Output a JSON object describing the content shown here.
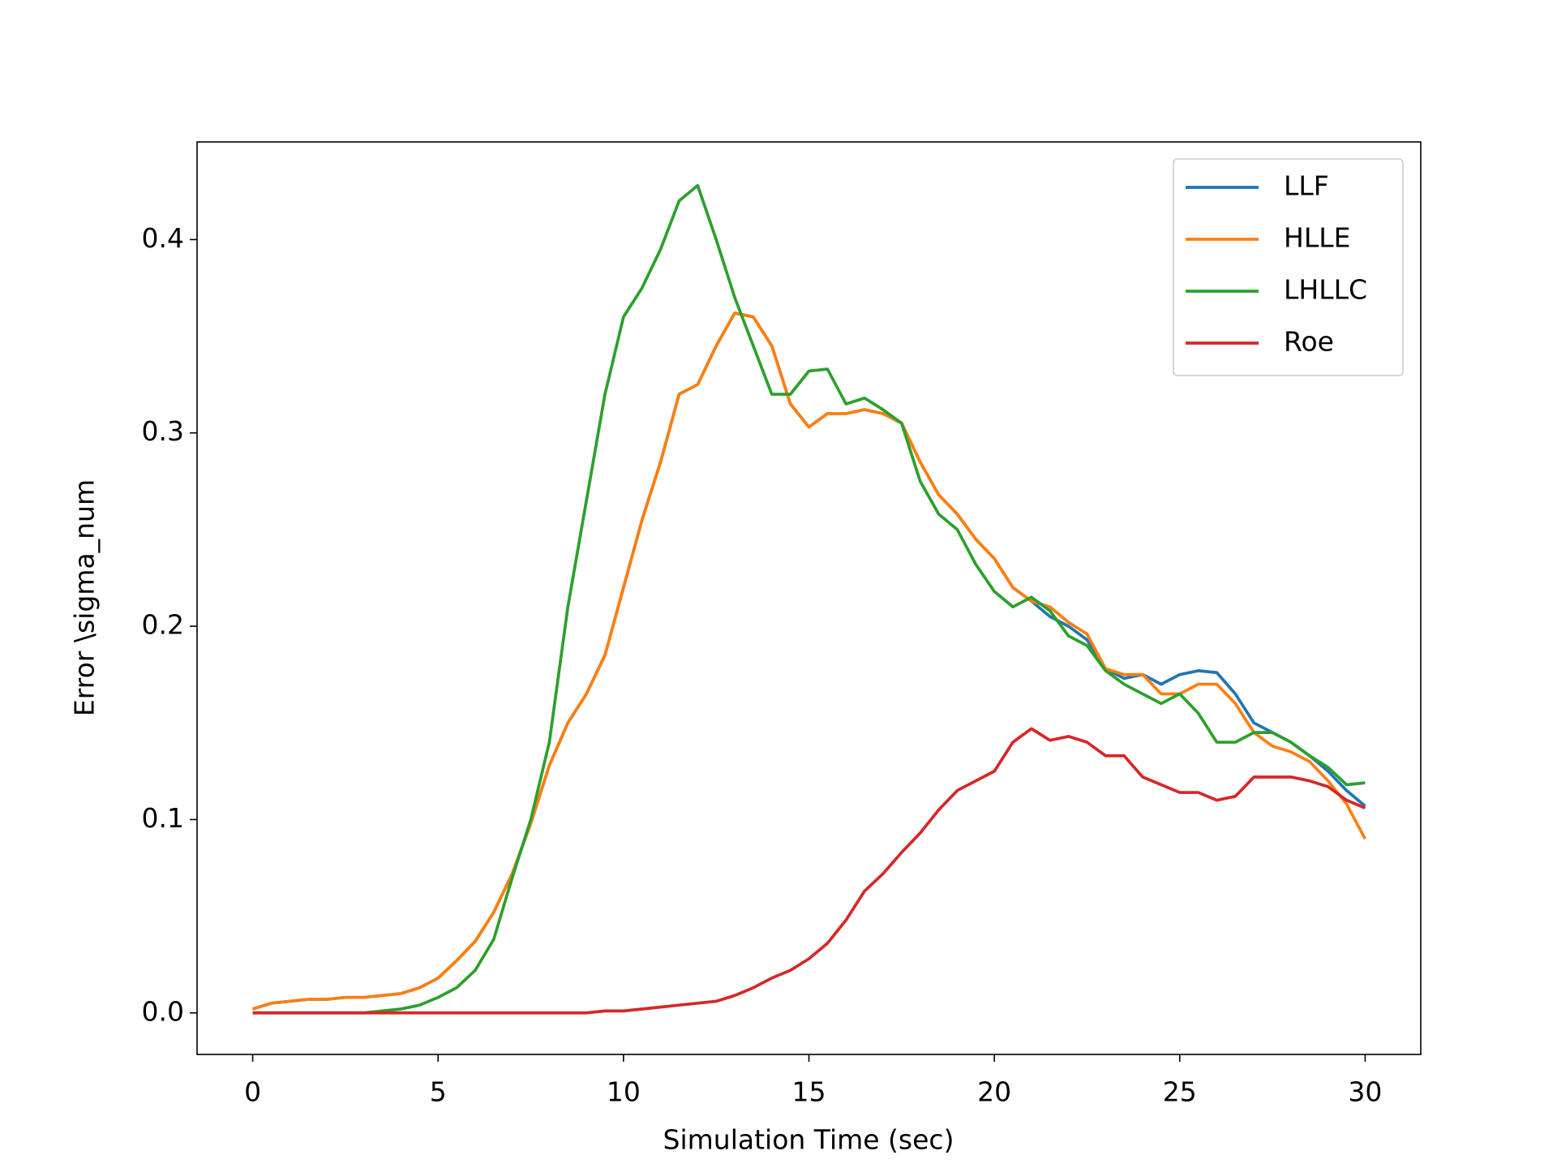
{
  "chart_data": {
    "type": "line",
    "x_label": "Simulation Time (sec)",
    "y_label": "Error \\sigma_num",
    "x": [
      0,
      0.5,
      1,
      1.5,
      2,
      2.5,
      3,
      3.5,
      4,
      4.5,
      5,
      5.5,
      6,
      6.5,
      7,
      7.5,
      8,
      8.5,
      9,
      9.5,
      10,
      10.5,
      11,
      11.5,
      12,
      12.5,
      13,
      13.5,
      14,
      14.5,
      15,
      15.5,
      16,
      16.5,
      17,
      17.5,
      18,
      18.5,
      19,
      19.5,
      20,
      20.5,
      21,
      21.5,
      22,
      22.5,
      23,
      23.5,
      24,
      24.5,
      25,
      25.5,
      26,
      26.5,
      27,
      27.5,
      28,
      28.5,
      29,
      29.5,
      30
    ],
    "series": [
      {
        "name": "LLF",
        "color": "#1f77b4",
        "values": [
          0.002,
          0.005,
          0.006,
          0.007,
          0.007,
          0.008,
          0.008,
          0.009,
          0.01,
          0.013,
          0.018,
          0.027,
          0.037,
          0.052,
          0.072,
          0.098,
          0.128,
          0.15,
          0.165,
          0.185,
          0.22,
          0.255,
          0.285,
          0.32,
          0.325,
          0.345,
          0.362,
          0.36,
          0.345,
          0.315,
          0.303,
          0.31,
          0.31,
          0.312,
          0.31,
          0.305,
          0.285,
          0.268,
          0.258,
          0.245,
          0.235,
          0.22,
          0.213,
          0.205,
          0.2,
          0.193,
          0.178,
          0.173,
          0.175,
          0.17,
          0.175,
          0.177,
          0.176,
          0.165,
          0.15,
          0.145,
          0.14,
          0.133,
          0.125,
          0.115,
          0.107
        ]
      },
      {
        "name": "HLLE",
        "color": "#ff7f0e",
        "values": [
          0.002,
          0.005,
          0.006,
          0.007,
          0.007,
          0.008,
          0.008,
          0.009,
          0.01,
          0.013,
          0.018,
          0.027,
          0.037,
          0.052,
          0.072,
          0.098,
          0.128,
          0.15,
          0.165,
          0.185,
          0.22,
          0.255,
          0.285,
          0.32,
          0.325,
          0.345,
          0.362,
          0.36,
          0.345,
          0.315,
          0.303,
          0.31,
          0.31,
          0.312,
          0.31,
          0.305,
          0.285,
          0.268,
          0.258,
          0.245,
          0.235,
          0.22,
          0.213,
          0.21,
          0.202,
          0.196,
          0.178,
          0.175,
          0.175,
          0.165,
          0.165,
          0.17,
          0.17,
          0.16,
          0.145,
          0.138,
          0.135,
          0.13,
          0.12,
          0.108,
          0.09
        ]
      },
      {
        "name": "LHLLC",
        "color": "#2ca02c",
        "values": [
          0,
          0,
          0,
          0,
          0,
          0,
          0,
          0.001,
          0.002,
          0.004,
          0.008,
          0.013,
          0.022,
          0.038,
          0.07,
          0.1,
          0.14,
          0.21,
          0.265,
          0.32,
          0.36,
          0.375,
          0.395,
          0.42,
          0.428,
          0.4,
          0.37,
          0.345,
          0.32,
          0.32,
          0.332,
          0.333,
          0.315,
          0.318,
          0.312,
          0.305,
          0.275,
          0.258,
          0.25,
          0.232,
          0.218,
          0.21,
          0.215,
          0.208,
          0.195,
          0.19,
          0.177,
          0.17,
          0.165,
          0.16,
          0.165,
          0.155,
          0.14,
          0.14,
          0.145,
          0.145,
          0.14,
          0.133,
          0.127,
          0.118,
          0.119
        ]
      },
      {
        "name": "Roe",
        "color": "#d62728",
        "values": [
          0,
          0,
          0,
          0,
          0,
          0,
          0,
          0,
          0,
          0,
          0,
          0,
          0,
          0,
          0,
          0,
          0,
          0,
          0,
          0.001,
          0.001,
          0.002,
          0.003,
          0.004,
          0.005,
          0.006,
          0.009,
          0.013,
          0.018,
          0.022,
          0.028,
          0.036,
          0.048,
          0.063,
          0.072,
          0.083,
          0.093,
          0.105,
          0.115,
          0.12,
          0.125,
          0.14,
          0.147,
          0.141,
          0.143,
          0.14,
          0.133,
          0.133,
          0.122,
          0.118,
          0.114,
          0.114,
          0.11,
          0.112,
          0.122,
          0.122,
          0.122,
          0.12,
          0.117,
          0.11,
          0.106
        ]
      }
    ],
    "xlim": [
      -1.5,
      31.5
    ],
    "ylim": [
      -0.0215,
      0.4505
    ],
    "xticks": [
      0,
      5,
      10,
      15,
      20,
      25,
      30
    ],
    "yticks": [
      {
        "value": 0,
        "label": "0.0"
      },
      0.1,
      0.2,
      0.3,
      0.4
    ],
    "legend": "upper right",
    "grid": false
  }
}
